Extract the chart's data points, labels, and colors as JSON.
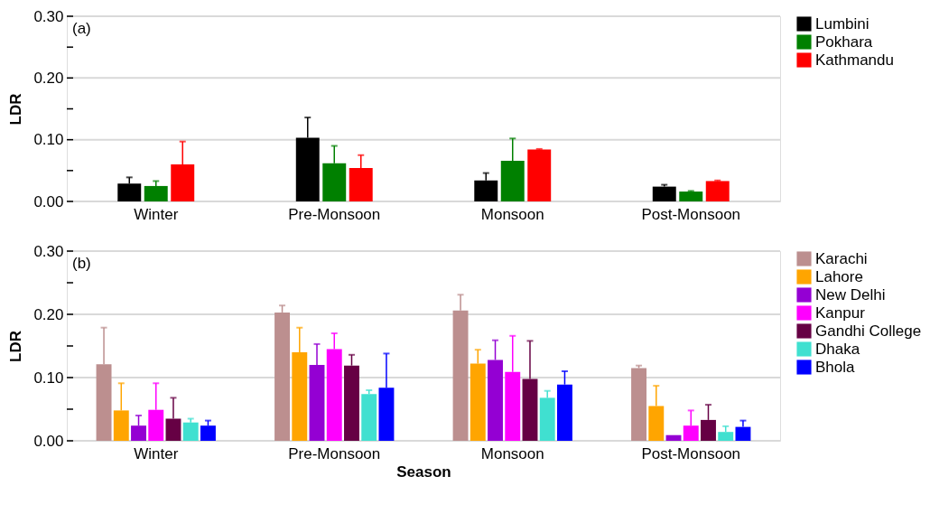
{
  "chart_data": [
    {
      "type": "bar",
      "ylabel": "LDR",
      "annotations": [
        "(a)"
      ],
      "categories": [
        "Winter",
        "Pre-Monsoon",
        "Monsoon",
        "Post-Monsoon"
      ],
      "series": [
        {
          "name": "Lumbini",
          "color": "#000000",
          "values": [
            0.029,
            0.103,
            0.034,
            0.024
          ],
          "errors": [
            [
              0.029,
              0.039
            ],
            [
              0.103,
              0.136
            ],
            [
              0.034,
              0.046
            ],
            [
              0.024,
              0.027
            ]
          ]
        },
        {
          "name": "Pokhara",
          "color": "#008000",
          "values": [
            0.025,
            0.062,
            0.066,
            0.016
          ],
          "errors": [
            [
              0.025,
              0.033
            ],
            [
              0.062,
              0.09
            ],
            [
              0.066,
              0.102
            ],
            [
              0.016,
              0.017
            ]
          ]
        },
        {
          "name": "Kathmandu",
          "color": "#ff0000",
          "values": [
            0.06,
            0.054,
            0.084,
            0.033
          ],
          "errors": [
            [
              0.06,
              0.097
            ],
            [
              0.054,
              0.075
            ],
            [
              0.084,
              0.085
            ],
            [
              0.033,
              0.034
            ]
          ]
        }
      ],
      "ylim": [
        0,
        0.3
      ],
      "yticks": [
        {
          "value": 0,
          "label": "0.00"
        },
        {
          "value": 0.05,
          "label": null
        },
        {
          "value": 0.1,
          "label": "0.10"
        },
        {
          "value": 0.15,
          "label": null
        },
        {
          "value": 0.2,
          "label": "0.20"
        },
        {
          "value": 0.25,
          "label": null
        },
        {
          "value": 0.3,
          "label": "0.30"
        }
      ],
      "grid": "y",
      "legend": "right"
    },
    {
      "type": "bar",
      "xlabel": "Season",
      "ylabel": "LDR",
      "annotations": [
        "(b)"
      ],
      "categories": [
        "Winter",
        "Pre-Monsoon",
        "Monsoon",
        "Post-Monsoon"
      ],
      "series": [
        {
          "name": "Karachi",
          "color": "#bc8f8f",
          "values": [
            0.121,
            0.203,
            0.206,
            0.115
          ],
          "errors": [
            [
              0.121,
              0.179
            ],
            [
              0.203,
              0.214
            ],
            [
              0.206,
              0.231
            ],
            [
              0.115,
              0.119
            ]
          ]
        },
        {
          "name": "Lahore",
          "color": "#ffa500",
          "values": [
            0.048,
            0.14,
            0.122,
            0.055
          ],
          "errors": [
            [
              0.048,
              0.091
            ],
            [
              0.14,
              0.179
            ],
            [
              0.122,
              0.144
            ],
            [
              0.055,
              0.087
            ]
          ]
        },
        {
          "name": "New Delhi",
          "color": "#9400d3",
          "values": [
            0.024,
            0.12,
            0.128,
            0.009
          ],
          "errors": [
            [
              0.024,
              0.04
            ],
            [
              0.12,
              0.153
            ],
            [
              0.128,
              0.159
            ],
            null
          ]
        },
        {
          "name": "Kanpur",
          "color": "#ff00ff",
          "values": [
            0.049,
            0.145,
            0.109,
            0.024
          ],
          "errors": [
            [
              0.049,
              0.091
            ],
            [
              0.145,
              0.17
            ],
            [
              0.109,
              0.166
            ],
            [
              0.024,
              0.048
            ]
          ]
        },
        {
          "name": "Gandhi College",
          "color": "#660044",
          "values": [
            0.035,
            0.119,
            0.098,
            0.033
          ],
          "errors": [
            [
              0.035,
              0.068
            ],
            [
              0.119,
              0.136
            ],
            [
              0.098,
              0.158
            ],
            [
              0.033,
              0.057
            ]
          ]
        },
        {
          "name": "Dhaka",
          "color": "#40e0d0",
          "values": [
            0.029,
            0.074,
            0.068,
            0.014
          ],
          "errors": [
            [
              0.029,
              0.035
            ],
            [
              0.074,
              0.08
            ],
            [
              0.068,
              0.079
            ],
            [
              0.014,
              0.023
            ]
          ]
        },
        {
          "name": "Bhola",
          "color": "#0000ff",
          "values": [
            0.024,
            0.084,
            0.089,
            0.022
          ],
          "errors": [
            [
              0.024,
              0.032
            ],
            [
              0.084,
              0.138
            ],
            [
              0.089,
              0.11
            ],
            [
              0.022,
              0.032
            ]
          ]
        }
      ],
      "ylim": [
        0,
        0.3
      ],
      "yticks": [
        {
          "value": 0,
          "label": "0.00"
        },
        {
          "value": 0.05,
          "label": null
        },
        {
          "value": 0.1,
          "label": "0.10"
        },
        {
          "value": 0.15,
          "label": null
        },
        {
          "value": 0.2,
          "label": "0.20"
        },
        {
          "value": 0.25,
          "label": null
        },
        {
          "value": 0.3,
          "label": "0.30"
        }
      ],
      "grid": "y",
      "legend": "right"
    }
  ]
}
